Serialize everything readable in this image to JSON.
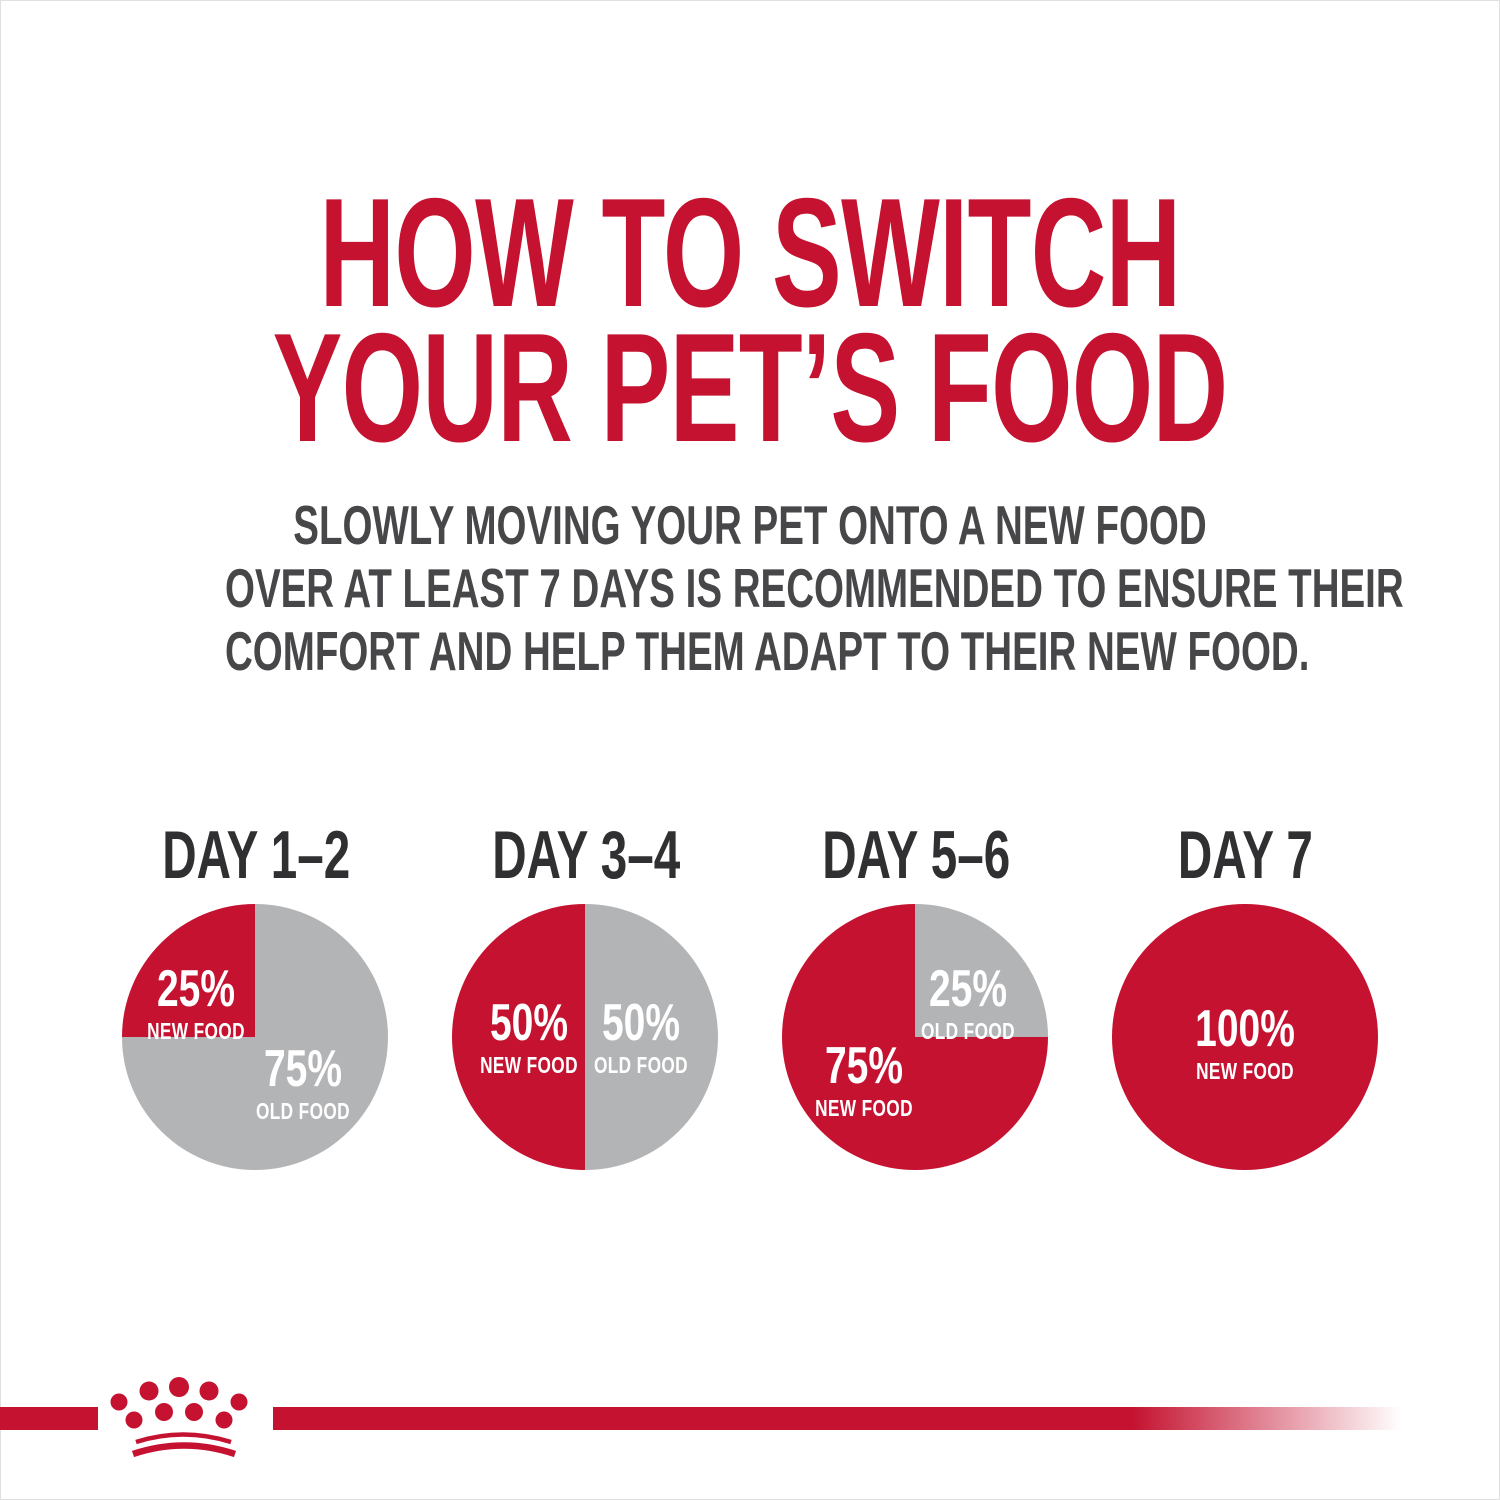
{
  "page": {
    "title_lines": [
      "HOW TO SWITCH",
      "YOUR PET’S FOOD"
    ],
    "subtitle_lines": [
      "SLOWLY MOVING YOUR PET ONTO A NEW FOOD",
      "OVER AT LEAST 7 DAYS IS RECOMMENDED TO ENSURE THEIR",
      "COMFORT AND HELP THEM ADAPT TO THEIR NEW FOOD."
    ]
  },
  "colors": {
    "brand_red": "#c41230",
    "old_food_gray": "#b3b4b6",
    "subtitle_dark": "#47474a",
    "heading_dark": "#303032",
    "label_white": "#ffffff"
  },
  "footer": {
    "logo": "royal-canin-crown"
  },
  "chart_data": [
    {
      "type": "pie",
      "title": "DAY 1–2",
      "slices": [
        {
          "label": "OLD FOOD",
          "value": 75,
          "color_key": "old_food_gray",
          "label_position": "lower-right"
        },
        {
          "label": "NEW FOOD",
          "value": 25,
          "color_key": "brand_red",
          "label_position": "upper-left"
        }
      ]
    },
    {
      "type": "pie",
      "title": "DAY 3–4",
      "slices": [
        {
          "label": "OLD FOOD",
          "value": 50,
          "color_key": "old_food_gray",
          "label_position": "mid-right"
        },
        {
          "label": "NEW FOOD",
          "value": 50,
          "color_key": "brand_red",
          "label_position": "mid-left"
        }
      ]
    },
    {
      "type": "pie",
      "title": "DAY 5–6",
      "slices": [
        {
          "label": "OLD FOOD",
          "value": 25,
          "color_key": "old_food_gray",
          "label_position": "upper-right"
        },
        {
          "label": "NEW FOOD",
          "value": 75,
          "color_key": "brand_red",
          "label_position": "lower-left"
        }
      ]
    },
    {
      "type": "pie",
      "title": "DAY 7",
      "slices": [
        {
          "label": "NEW FOOD",
          "value": 100,
          "color_key": "brand_red",
          "label_position": "center"
        }
      ]
    }
  ]
}
